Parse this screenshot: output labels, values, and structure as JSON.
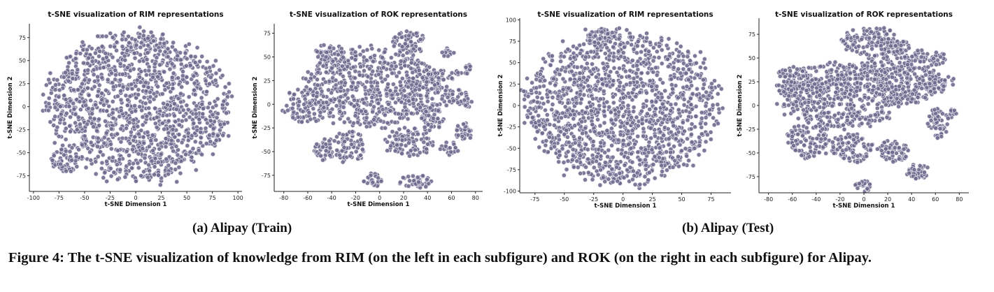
{
  "figure": {
    "caption": "Figure 4: The t-SNE visualization of knowledge from RIM (on the left in each subfigure) and ROK (on the right in each subfigure) for Alipay.",
    "subcaptions": [
      "(a) Alipay (Train)",
      "(b) Alipay (Test)"
    ]
  },
  "colors": {
    "point_fill": "#6e6a8e",
    "point_edge": "#e6e6ee",
    "axis": "#222222"
  },
  "chart_data": [
    {
      "type": "scatter",
      "title": "t-SNE visualization of RIM representations",
      "xlabel": "t-SNE Dimension 1",
      "ylabel": "t-SNE Dimension 2",
      "xlim": [
        -104,
        104
      ],
      "ylim": [
        -92,
        90
      ],
      "xticks": [
        -100,
        -75,
        -50,
        -25,
        0,
        25,
        50,
        75,
        100
      ],
      "yticks": [
        -75,
        -50,
        -25,
        0,
        25,
        50,
        75
      ],
      "clusters": [
        {
          "cx": 3,
          "cy": 0,
          "rx": 88,
          "ry": 80,
          "n": 1400
        },
        {
          "cx": -68,
          "cy": -58,
          "rx": 14,
          "ry": 13,
          "n": 60
        }
      ]
    },
    {
      "type": "scatter",
      "title": "t-SNE visualization of ROK representations",
      "xlabel": "t-SNE Dimension 1",
      "ylabel": "t-SNE Dimension 2",
      "xlim": [
        -88,
        86
      ],
      "ylim": [
        -92,
        85
      ],
      "xticks": [
        -80,
        -60,
        -40,
        -20,
        0,
        20,
        40,
        60,
        80
      ],
      "yticks": [
        -75,
        -50,
        -25,
        0,
        25,
        50,
        75
      ],
      "clusters": [
        {
          "cx": -5,
          "cy": 18,
          "rx": 55,
          "ry": 42,
          "n": 550
        },
        {
          "cx": -62,
          "cy": -2,
          "rx": 18,
          "ry": 20,
          "n": 90
        },
        {
          "cx": -42,
          "cy": 50,
          "rx": 14,
          "ry": 14,
          "n": 60
        },
        {
          "cx": -45,
          "cy": -48,
          "rx": 11,
          "ry": 11,
          "n": 50
        },
        {
          "cx": -25,
          "cy": -45,
          "rx": 14,
          "ry": 17,
          "n": 70
        },
        {
          "cx": 25,
          "cy": -40,
          "rx": 20,
          "ry": 16,
          "n": 90
        },
        {
          "cx": 25,
          "cy": 65,
          "rx": 14,
          "ry": 12,
          "n": 60
        },
        {
          "cx": 40,
          "cy": 15,
          "rx": 20,
          "ry": 25,
          "n": 110
        },
        {
          "cx": 42,
          "cy": -15,
          "rx": 12,
          "ry": 12,
          "n": 45
        },
        {
          "cx": 65,
          "cy": 8,
          "rx": 9,
          "ry": 10,
          "n": 28
        },
        {
          "cx": 70,
          "cy": -28,
          "rx": 7,
          "ry": 14,
          "n": 30
        },
        {
          "cx": 58,
          "cy": -47,
          "rx": 7,
          "ry": 7,
          "n": 20
        },
        {
          "cx": 57,
          "cy": 55,
          "rx": 5,
          "ry": 5,
          "n": 12
        },
        {
          "cx": 72,
          "cy": 38,
          "rx": 6,
          "ry": 6,
          "n": 14
        },
        {
          "cx": 62,
          "cy": 30,
          "rx": 6,
          "ry": 6,
          "n": 12
        },
        {
          "cx": 75,
          "cy": 2,
          "rx": 5,
          "ry": 6,
          "n": 10
        },
        {
          "cx": -5,
          "cy": -80,
          "rx": 8,
          "ry": 7,
          "n": 30
        },
        {
          "cx": 30,
          "cy": -82,
          "rx": 14,
          "ry": 7,
          "n": 40
        }
      ]
    },
    {
      "type": "scatter",
      "title": "t-SNE visualization of RIM representations",
      "xlabel": "t-SNE Dimension 1",
      "ylabel": "t-SNE Dimension 2",
      "xlim": [
        -88,
        92
      ],
      "ylim": [
        -102,
        102
      ],
      "xticks": [
        -75,
        -50,
        -25,
        0,
        25,
        50,
        75
      ],
      "yticks": [
        -100,
        -75,
        -50,
        -25,
        0,
        25,
        50,
        75,
        100
      ],
      "clusters": [
        {
          "cx": 0,
          "cy": -2,
          "rx": 82,
          "ry": 88,
          "n": 1450
        },
        {
          "cx": -18,
          "cy": 78,
          "rx": 12,
          "ry": 12,
          "n": 50
        }
      ]
    },
    {
      "type": "scatter",
      "title": "t-SNE visualization of ROK representations",
      "xlabel": "t-SNE Dimension 1",
      "ylabel": "t-SNE Dimension 2",
      "xlim": [
        -88,
        88
      ],
      "ylim": [
        -92,
        92
      ],
      "xticks": [
        -80,
        -60,
        -40,
        -20,
        0,
        20,
        40,
        60,
        80
      ],
      "yticks": [
        -75,
        -50,
        -25,
        0,
        25,
        50,
        75
      ],
      "clusters": [
        {
          "cx": -20,
          "cy": 10,
          "rx": 50,
          "ry": 35,
          "n": 520
        },
        {
          "cx": 30,
          "cy": 30,
          "rx": 35,
          "ry": 30,
          "n": 300
        },
        {
          "cx": 5,
          "cy": 68,
          "rx": 25,
          "ry": 15,
          "n": 120
        },
        {
          "cx": -60,
          "cy": 25,
          "rx": 14,
          "ry": 16,
          "n": 70
        },
        {
          "cx": -45,
          "cy": -35,
          "rx": 18,
          "ry": 20,
          "n": 100
        },
        {
          "cx": -10,
          "cy": -45,
          "rx": 18,
          "ry": 15,
          "n": 90
        },
        {
          "cx": 25,
          "cy": -48,
          "rx": 14,
          "ry": 12,
          "n": 60
        },
        {
          "cx": 45,
          "cy": -70,
          "rx": 10,
          "ry": 8,
          "n": 40
        },
        {
          "cx": 0,
          "cy": -85,
          "rx": 7,
          "ry": 6,
          "n": 20
        },
        {
          "cx": 58,
          "cy": 20,
          "rx": 10,
          "ry": 10,
          "n": 35
        },
        {
          "cx": 62,
          "cy": -15,
          "rx": 10,
          "ry": 12,
          "n": 40
        },
        {
          "cx": 72,
          "cy": -8,
          "rx": 6,
          "ry": 6,
          "n": 12
        },
        {
          "cx": 62,
          "cy": 50,
          "rx": 7,
          "ry": 7,
          "n": 18
        },
        {
          "cx": 70,
          "cy": 25,
          "rx": 6,
          "ry": 6,
          "n": 12
        },
        {
          "cx": 65,
          "cy": -30,
          "rx": 6,
          "ry": 6,
          "n": 12
        },
        {
          "cx": 30,
          "cy": 62,
          "rx": 8,
          "ry": 8,
          "n": 22
        }
      ]
    }
  ]
}
